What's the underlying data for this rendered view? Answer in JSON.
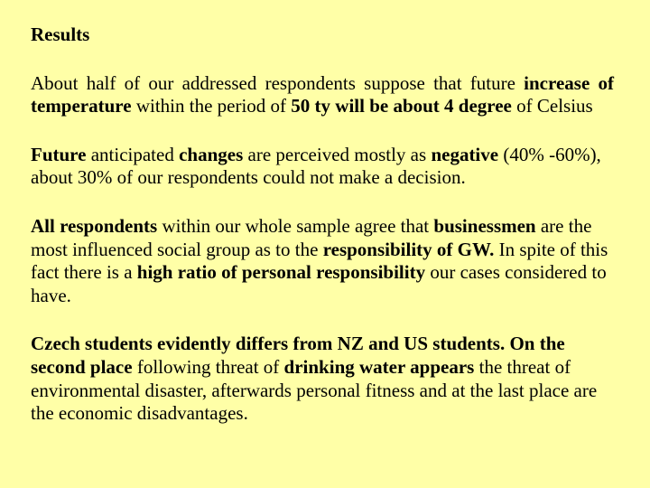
{
  "background_color": "#ffffa7",
  "text_color": "#000000",
  "font_family": "Times New Roman",
  "font_size_pt": 16,
  "heading": "Results",
  "p1": "About half of our addressed respondents suppose that future increase of temperature within the period of 50 ty will be about 4 degree of Celsius",
  "p1_html": "About half of our addressed respondents suppose that future <b>increase of temperature</b> within the period of <b>50 ty will be about 4 degree</b> of Celsius",
  "p2": "Future anticipated changes are perceived mostly as negative (40% -60%), about 30% of our respondents could not make a decision.",
  "p2_html": "<b>Future</b> anticipated <b>changes</b> are perceived mostly as <b>negative</b> (40% -60%), about 30% of our respondents could not make a decision.",
  "p3": "All respondents within our whole sample agree that businessmen are the most influenced social group as to the responsibility of GW. In spite of this fact there is a high ratio of personal responsibility our cases considered to have.",
  "p3_html": "<b>All respondents</b> within our whole sample agree that <b>businessmen</b> are the most influenced social group as to the <b>responsibility of GW.</b> In spite of this fact there is a <b>high ratio of personal responsibility</b> our cases considered to have.",
  "p4": "Czech students evidently differs from NZ and US students. On the second place following threat of drinking water appears the threat of environmental disaster, afterwards personal fitness and at the last place are the economic disadvantages.",
  "p4_html": "<b>Czech students evidently differs from NZ and US students. On the second place</b> following threat of <b>drinking water appears</b> the threat of environmental disaster, afterwards personal fitness and at the last place are the economic disadvantages."
}
